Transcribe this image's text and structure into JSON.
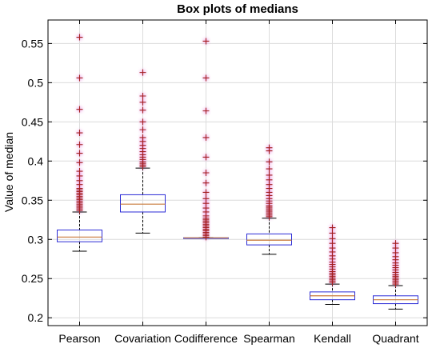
{
  "chart_data": {
    "type": "box",
    "title": "Box plots of medians",
    "xlabel": "",
    "ylabel": "Value of median",
    "ylim": [
      0.19,
      0.58
    ],
    "yticks": [
      0.2,
      0.25,
      0.3,
      0.35,
      0.4,
      0.45,
      0.5,
      0.55
    ],
    "ytick_labels": [
      "0.2",
      "0.25",
      "0.3",
      "0.35",
      "0.4",
      "0.45",
      "0.5",
      "0.55"
    ],
    "grid": true,
    "categories": [
      "Pearson",
      "Covariation",
      "Codifference",
      "Spearman",
      "Kendall",
      "Quadrant"
    ],
    "boxes": [
      {
        "name": "Pearson",
        "whisker_low": 0.285,
        "q1": 0.297,
        "median": 0.303,
        "q3": 0.312,
        "whisker_high": 0.335,
        "outliers": [
          0.337,
          0.339,
          0.341,
          0.343,
          0.345,
          0.347,
          0.349,
          0.351,
          0.353,
          0.355,
          0.357,
          0.359,
          0.361,
          0.363,
          0.365,
          0.37,
          0.375,
          0.381,
          0.387,
          0.398,
          0.41,
          0.421,
          0.436,
          0.466,
          0.506,
          0.558
        ]
      },
      {
        "name": "Covariation",
        "whisker_low": 0.308,
        "q1": 0.335,
        "median": 0.345,
        "q3": 0.357,
        "whisker_high": 0.391,
        "outliers": [
          0.393,
          0.395,
          0.397,
          0.399,
          0.402,
          0.405,
          0.408,
          0.412,
          0.416,
          0.42,
          0.425,
          0.43,
          0.44,
          0.45,
          0.465,
          0.475,
          0.483,
          0.513
        ]
      },
      {
        "name": "Codifference",
        "whisker_low": 0.302,
        "q1": 0.302,
        "median": 0.302,
        "q3": 0.302,
        "whisker_high": 0.302,
        "outliers": [
          0.303,
          0.305,
          0.307,
          0.309,
          0.311,
          0.313,
          0.315,
          0.317,
          0.319,
          0.321,
          0.323,
          0.325,
          0.327,
          0.33,
          0.335,
          0.34,
          0.346,
          0.352,
          0.36,
          0.372,
          0.385,
          0.405,
          0.43,
          0.464,
          0.506,
          0.553
        ]
      },
      {
        "name": "Spearman",
        "whisker_low": 0.281,
        "q1": 0.293,
        "median": 0.299,
        "q3": 0.307,
        "whisker_high": 0.327,
        "outliers": [
          0.329,
          0.331,
          0.333,
          0.335,
          0.337,
          0.339,
          0.341,
          0.343,
          0.346,
          0.349,
          0.352,
          0.356,
          0.36,
          0.365,
          0.37,
          0.376,
          0.382,
          0.39,
          0.399,
          0.413,
          0.417
        ]
      },
      {
        "name": "Kendall",
        "whisker_low": 0.217,
        "q1": 0.223,
        "median": 0.228,
        "q3": 0.233,
        "whisker_high": 0.243,
        "outliers": [
          0.245,
          0.247,
          0.249,
          0.251,
          0.253,
          0.255,
          0.257,
          0.259,
          0.262,
          0.265,
          0.268,
          0.271,
          0.275,
          0.279,
          0.284,
          0.289,
          0.295,
          0.301,
          0.308,
          0.315
        ]
      },
      {
        "name": "Quadrant",
        "whisker_low": 0.211,
        "q1": 0.218,
        "median": 0.223,
        "q3": 0.228,
        "whisker_high": 0.241,
        "outliers": [
          0.243,
          0.245,
          0.247,
          0.249,
          0.251,
          0.253,
          0.255,
          0.258,
          0.261,
          0.264,
          0.267,
          0.27,
          0.274,
          0.278,
          0.283,
          0.289,
          0.295
        ]
      }
    ],
    "colors": {
      "box": "#2b2bd6",
      "median": "#c97a3a",
      "whisker": "#000000",
      "outlier": "#a31f1f",
      "outlier_glow": "#e98ae0",
      "grid": "#dcdcdc",
      "axes": "#000000"
    }
  }
}
